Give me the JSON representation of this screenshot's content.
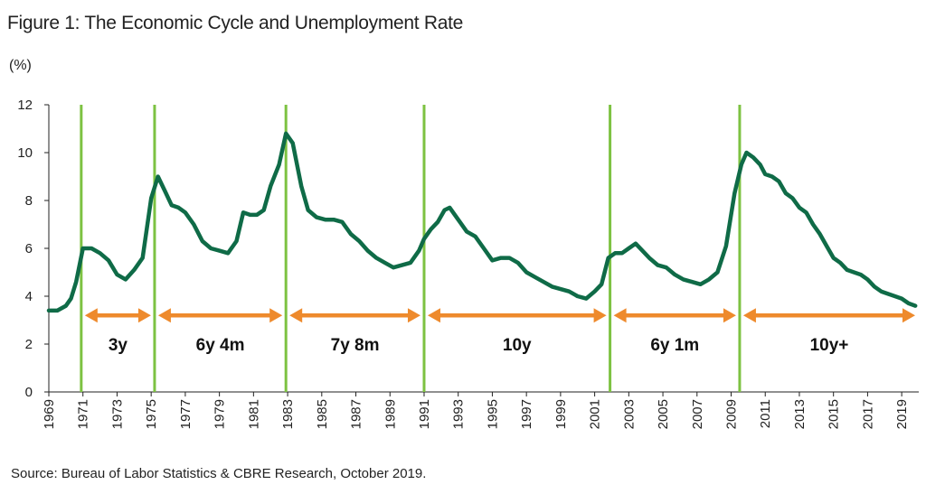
{
  "chart_data": {
    "type": "line",
    "title": "Figure 1: The Economic Cycle and Unemployment Rate",
    "ylabel": "(%)",
    "source": "Source: Bureau of Labor Statistics & CBRE Research, October 2019.",
    "ylim": [
      0,
      12
    ],
    "yticks": [
      "0",
      "2",
      "4",
      "6",
      "8",
      "10",
      "12"
    ],
    "xlim": [
      1969,
      2020
    ],
    "xticks": [
      "1969",
      "1971",
      "1973",
      "1975",
      "1977",
      "1979",
      "1981",
      "1983",
      "1985",
      "1987",
      "1989",
      "1991",
      "1993",
      "1995",
      "1997",
      "1999",
      "2001",
      "2003",
      "2005",
      "2007",
      "2009",
      "2011",
      "2013",
      "2015",
      "2017",
      "2019"
    ],
    "grid": false,
    "series": [
      {
        "color": "#0f6b47",
        "x": [
          1969.0,
          1969.5,
          1970.0,
          1970.3,
          1970.6,
          1971.0,
          1971.5,
          1972.0,
          1972.5,
          1973.0,
          1973.5,
          1974.0,
          1974.5,
          1975.0,
          1975.4,
          1975.8,
          1976.2,
          1976.6,
          1977.0,
          1977.5,
          1978.0,
          1978.5,
          1979.0,
          1979.5,
          1980.0,
          1980.4,
          1980.8,
          1981.2,
          1981.6,
          1982.0,
          1982.5,
          1982.9,
          1983.3,
          1983.8,
          1984.2,
          1984.7,
          1985.2,
          1985.7,
          1986.2,
          1986.7,
          1987.2,
          1987.7,
          1988.2,
          1988.7,
          1989.2,
          1989.7,
          1990.2,
          1990.7,
          1991.0,
          1991.4,
          1991.8,
          1992.2,
          1992.5,
          1993.0,
          1993.5,
          1994.0,
          1994.5,
          1995.0,
          1995.5,
          1996.0,
          1996.5,
          1997.0,
          1997.5,
          1998.0,
          1998.5,
          1999.0,
          1999.5,
          2000.0,
          2000.5,
          2001.0,
          2001.4,
          2001.8,
          2002.2,
          2002.6,
          2003.0,
          2003.4,
          2003.8,
          2004.2,
          2004.7,
          2005.2,
          2005.7,
          2006.2,
          2006.7,
          2007.2,
          2007.7,
          2008.2,
          2008.7,
          2009.2,
          2009.6,
          2009.9,
          2010.3,
          2010.7,
          2011.0,
          2011.4,
          2011.8,
          2012.2,
          2012.6,
          2013.0,
          2013.4,
          2013.8,
          2014.2,
          2014.6,
          2015.0,
          2015.4,
          2015.8,
          2016.2,
          2016.6,
          2017.0,
          2017.4,
          2017.8,
          2018.2,
          2018.6,
          2019.0,
          2019.4,
          2019.8
        ],
        "y": [
          3.4,
          3.4,
          3.6,
          3.9,
          4.6,
          6.0,
          6.0,
          5.8,
          5.5,
          4.9,
          4.7,
          5.1,
          5.6,
          8.1,
          9.0,
          8.4,
          7.8,
          7.7,
          7.5,
          7.0,
          6.3,
          6.0,
          5.9,
          5.8,
          6.3,
          7.5,
          7.4,
          7.4,
          7.6,
          8.6,
          9.5,
          10.8,
          10.4,
          8.6,
          7.6,
          7.3,
          7.2,
          7.2,
          7.1,
          6.6,
          6.3,
          5.9,
          5.6,
          5.4,
          5.2,
          5.3,
          5.4,
          5.9,
          6.4,
          6.8,
          7.1,
          7.6,
          7.7,
          7.2,
          6.7,
          6.5,
          6.0,
          5.5,
          5.6,
          5.6,
          5.4,
          5.0,
          4.8,
          4.6,
          4.4,
          4.3,
          4.2,
          4.0,
          3.9,
          4.2,
          4.5,
          5.6,
          5.8,
          5.8,
          6.0,
          6.2,
          5.9,
          5.6,
          5.3,
          5.2,
          4.9,
          4.7,
          4.6,
          4.5,
          4.7,
          5.0,
          6.1,
          8.3,
          9.5,
          10.0,
          9.8,
          9.5,
          9.1,
          9.0,
          8.8,
          8.3,
          8.1,
          7.7,
          7.5,
          7.0,
          6.6,
          6.1,
          5.6,
          5.4,
          5.1,
          5.0,
          4.9,
          4.7,
          4.4,
          4.2,
          4.1,
          4.0,
          3.9,
          3.7,
          3.6
        ]
      }
    ],
    "recession_lines_x": [
      1970.9,
      1975.2,
      1982.9,
      1991.0,
      2001.9,
      2009.5
    ],
    "cycles": [
      {
        "label": "3y",
        "x_start": 1970.9,
        "x_end": 1975.2
      },
      {
        "label": "6y 4m",
        "x_start": 1975.2,
        "x_end": 1982.9
      },
      {
        "label": "7y 8m",
        "x_start": 1982.9,
        "x_end": 1991.0
      },
      {
        "label": "10y",
        "x_start": 1991.0,
        "x_end": 2001.9
      },
      {
        "label": "6y 1m",
        "x_start": 2001.9,
        "x_end": 2009.5
      },
      {
        "label": "10y+",
        "x_start": 2009.5,
        "x_end": 2020.0
      }
    ],
    "arrow_y": 3.2,
    "colors": {
      "line": "#0f6b47",
      "recession": "#7dc242",
      "arrow": "#ee8a2c"
    }
  }
}
